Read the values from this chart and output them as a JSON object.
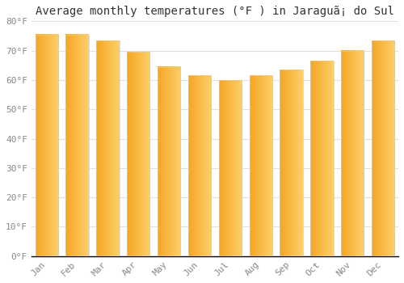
{
  "title": "Average monthly temperatures (°F ) in Jaraguã¡ do Sul",
  "months": [
    "Jan",
    "Feb",
    "Mar",
    "Apr",
    "May",
    "Jun",
    "Jul",
    "Aug",
    "Sep",
    "Oct",
    "Nov",
    "Dec"
  ],
  "values": [
    75.5,
    75.5,
    73.5,
    69.5,
    64.5,
    61.5,
    60.0,
    61.5,
    63.5,
    66.5,
    70.0,
    73.5
  ],
  "bar_color_left": "#F5A623",
  "bar_color_right": "#FDD06A",
  "bar_edge_color": "#CCCCCC",
  "background_color": "#FFFFFF",
  "grid_color": "#E0E0E0",
  "ylim": [
    0,
    80
  ],
  "yticks": [
    0,
    10,
    20,
    30,
    40,
    50,
    60,
    70,
    80
  ],
  "ytick_labels": [
    "0°F",
    "10°F",
    "20°F",
    "30°F",
    "40°F",
    "50°F",
    "60°F",
    "70°F",
    "80°F"
  ],
  "title_fontsize": 10,
  "tick_fontsize": 8,
  "font_family": "monospace"
}
